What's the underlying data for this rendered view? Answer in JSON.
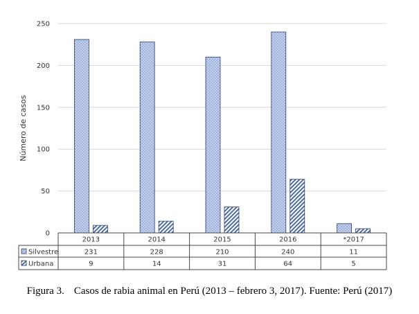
{
  "chart_data": {
    "type": "bar",
    "ylabel": "Número de casos",
    "ylim": [
      0,
      250
    ],
    "yticks": [
      0,
      50,
      100,
      150,
      200,
      250
    ],
    "grid": true,
    "categories": [
      "2013",
      "2014",
      "2015",
      "2016",
      "*2017"
    ],
    "series": [
      {
        "name": "Silvestre",
        "values": [
          231,
          228,
          210,
          240,
          11
        ],
        "value_labels": [
          "231",
          "228",
          "210",
          "240",
          "11"
        ],
        "color": "#9fb3dd",
        "pattern": "dotted"
      },
      {
        "name": "Urbana",
        "values": [
          9,
          14,
          31,
          64,
          5
        ],
        "value_labels": [
          "9",
          "14",
          "31",
          "64",
          "5"
        ],
        "color": "#3d5f9f",
        "pattern": "diagonal"
      }
    ],
    "legend_placement": "data-table"
  },
  "caption": {
    "label": "Figura 3.",
    "text": "Casos de rabia animal en Perú (2013 – febrero 3, 2017). Fuente: Perú (2017)"
  }
}
